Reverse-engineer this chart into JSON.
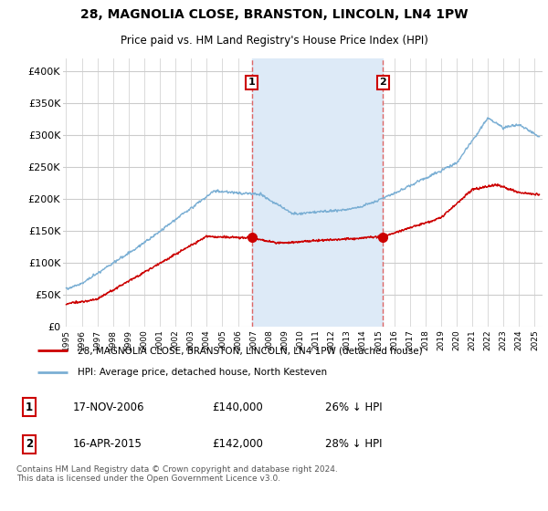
{
  "title": "28, MAGNOLIA CLOSE, BRANSTON, LINCOLN, LN4 1PW",
  "subtitle": "Price paid vs. HM Land Registry's House Price Index (HPI)",
  "bg_color": "#ffffff",
  "plot_bg_color": "#ffffff",
  "grid_color": "#cccccc",
  "hpi_color": "#7bafd4",
  "price_color": "#cc0000",
  "dashed_line_color": "#dd6666",
  "span_color": "#ddeaf7",
  "marker1_date_idx": 2006.88,
  "marker2_date_idx": 2015.29,
  "marker1_price": 140000,
  "marker2_price": 142000,
  "marker1_label": "17-NOV-2006",
  "marker2_label": "16-APR-2015",
  "marker1_hpi_text": "26% ↓ HPI",
  "marker2_hpi_text": "28% ↓ HPI",
  "legend_line1": "28, MAGNOLIA CLOSE, BRANSTON, LINCOLN, LN4 1PW (detached house)",
  "legend_line2": "HPI: Average price, detached house, North Kesteven",
  "footer": "Contains HM Land Registry data © Crown copyright and database right 2024.\nThis data is licensed under the Open Government Licence v3.0.",
  "ylim": [
    0,
    420000
  ],
  "yticks": [
    0,
    50000,
    100000,
    150000,
    200000,
    250000,
    300000,
    350000,
    400000
  ],
  "ytick_labels": [
    "£0",
    "£50K",
    "£100K",
    "£150K",
    "£200K",
    "£250K",
    "£300K",
    "£350K",
    "£400K"
  ],
  "xlim_start": 1994.8,
  "xlim_end": 2025.5
}
